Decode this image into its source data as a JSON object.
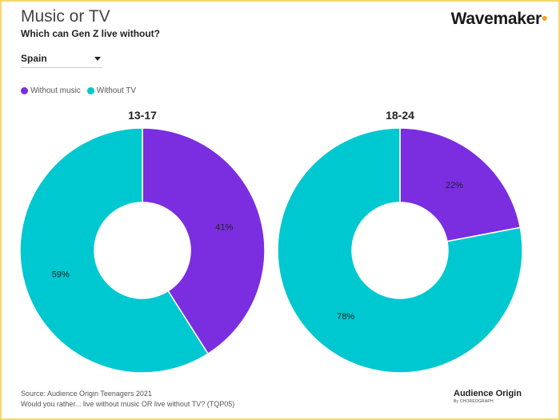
{
  "header": {
    "title": "Music or TV",
    "subtitle": "Which can Gen Z live without?",
    "brand": "Wavemaker",
    "brand_dot": "•"
  },
  "filter": {
    "selected": "Spain"
  },
  "colors": {
    "music": "#7a2ee0",
    "tv": "#00c8d0",
    "border": "#f5d76e",
    "brand_dot": "#f4a21b"
  },
  "chart_data": [
    {
      "type": "pie",
      "title": "13-17",
      "categories": [
        "Without music",
        "Without TV"
      ],
      "values": [
        41,
        59
      ],
      "labels": [
        "41%",
        "59%"
      ]
    },
    {
      "type": "pie",
      "title": "18-24",
      "categories": [
        "Without music",
        "Without TV"
      ],
      "values": [
        22,
        78
      ],
      "labels": [
        "22%",
        "78%"
      ]
    }
  ],
  "legend": {
    "entries": [
      "Without music",
      "Without TV"
    ],
    "placement": "top-left"
  },
  "footer": {
    "source": "Source: Audience Origin Teenagers 2021",
    "question": "Would you rather... live without music OR live without TV? (TQP05)",
    "logo": "Audience Origin",
    "logo_sub": "By CHOREOGRAPH"
  }
}
